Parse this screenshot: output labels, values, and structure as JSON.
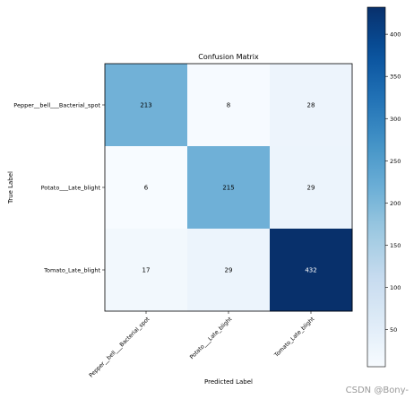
{
  "chart_data": {
    "type": "heatmap",
    "title": "Confusion Matrix",
    "xlabel": "Predicted Label",
    "ylabel": "True Label",
    "categories": [
      "Pepper__bell___Bacterial_spot",
      "Potato___Late_blight",
      "Tomato_Late_blight"
    ],
    "x_tick_labels": [
      "Pepper__bell___Bacterial_spot",
      "Potato___Late_blight",
      "Tomato_Late_blight"
    ],
    "y_tick_labels": [
      "Pepper__bell___Bacterial_spot",
      "Potato___Late_blight",
      "Tomato_Late_blight"
    ],
    "matrix": [
      [
        213,
        8,
        28
      ],
      [
        6,
        215,
        29
      ],
      [
        17,
        29,
        432
      ]
    ],
    "colormap": "Blues",
    "colorbar_range": [
      6,
      432
    ],
    "colorbar_ticks": [
      50,
      100,
      150,
      200,
      250,
      300,
      350,
      400
    ]
  },
  "watermark": "CSDN @Bony-"
}
